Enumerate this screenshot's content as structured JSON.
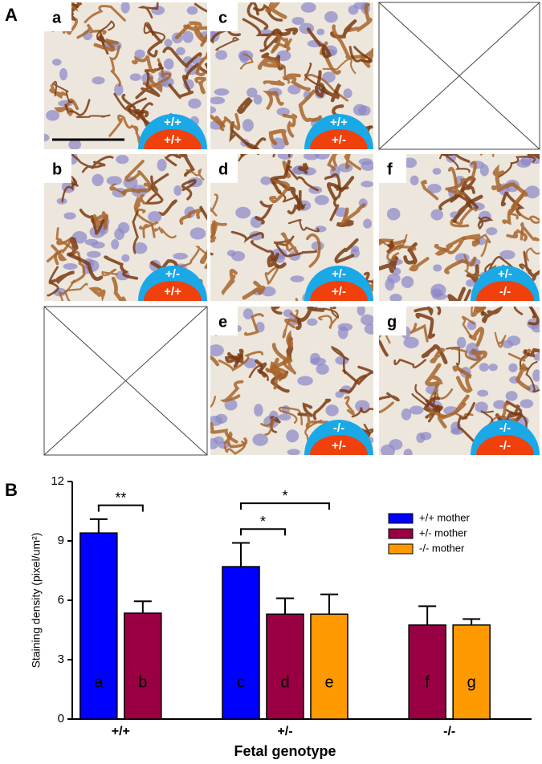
{
  "panel_a": {
    "label": "A",
    "images": [
      {
        "letter": "a",
        "mother": "+/+",
        "fetus": "+/+"
      },
      {
        "letter": "c",
        "mother": "+/+",
        "fetus": "+/-"
      },
      {
        "letter": "b",
        "mother": "+/-",
        "fetus": "+/+"
      },
      {
        "letter": "d",
        "mother": "+/-",
        "fetus": "+/-"
      },
      {
        "letter": "f",
        "mother": "+/-",
        "fetus": "-/-"
      },
      {
        "letter": "e",
        "mother": "-/-",
        "fetus": "+/-"
      },
      {
        "letter": "g",
        "mother": "-/-",
        "fetus": "-/-"
      }
    ]
  },
  "chart_data": {
    "type": "bar",
    "panel_label": "B",
    "xlabel": "Fetal genotype",
    "ylabel": "Staining density (pixel/um²)",
    "categories": [
      "+/+",
      "+/-",
      "-/-"
    ],
    "series": [
      {
        "name": "+/+ mother",
        "color": "#0000ff",
        "values": [
          9.4,
          7.7,
          null
        ],
        "errors": [
          0.7,
          1.2,
          null
        ],
        "bar_labels": [
          "a",
          "c",
          null
        ]
      },
      {
        "name": "+/- mother",
        "color": "#990044",
        "values": [
          5.35,
          5.3,
          4.75
        ],
        "errors": [
          0.6,
          0.8,
          0.95
        ],
        "bar_labels": [
          "b",
          "d",
          "f"
        ]
      },
      {
        "name": "-/- mother",
        "color": "#ff9900",
        "values": [
          null,
          5.3,
          4.75
        ],
        "errors": [
          null,
          1.0,
          0.3
        ],
        "bar_labels": [
          null,
          "e",
          "g"
        ]
      }
    ],
    "annotations": [
      {
        "text": "**",
        "y": 10.8
      },
      {
        "text": "*",
        "y": 9.6
      },
      {
        "text": "*",
        "y": 10.9
      }
    ],
    "ylim": [
      0,
      12
    ],
    "yticks": [
      0,
      3,
      6,
      9,
      12
    ],
    "legend": "upper right"
  }
}
